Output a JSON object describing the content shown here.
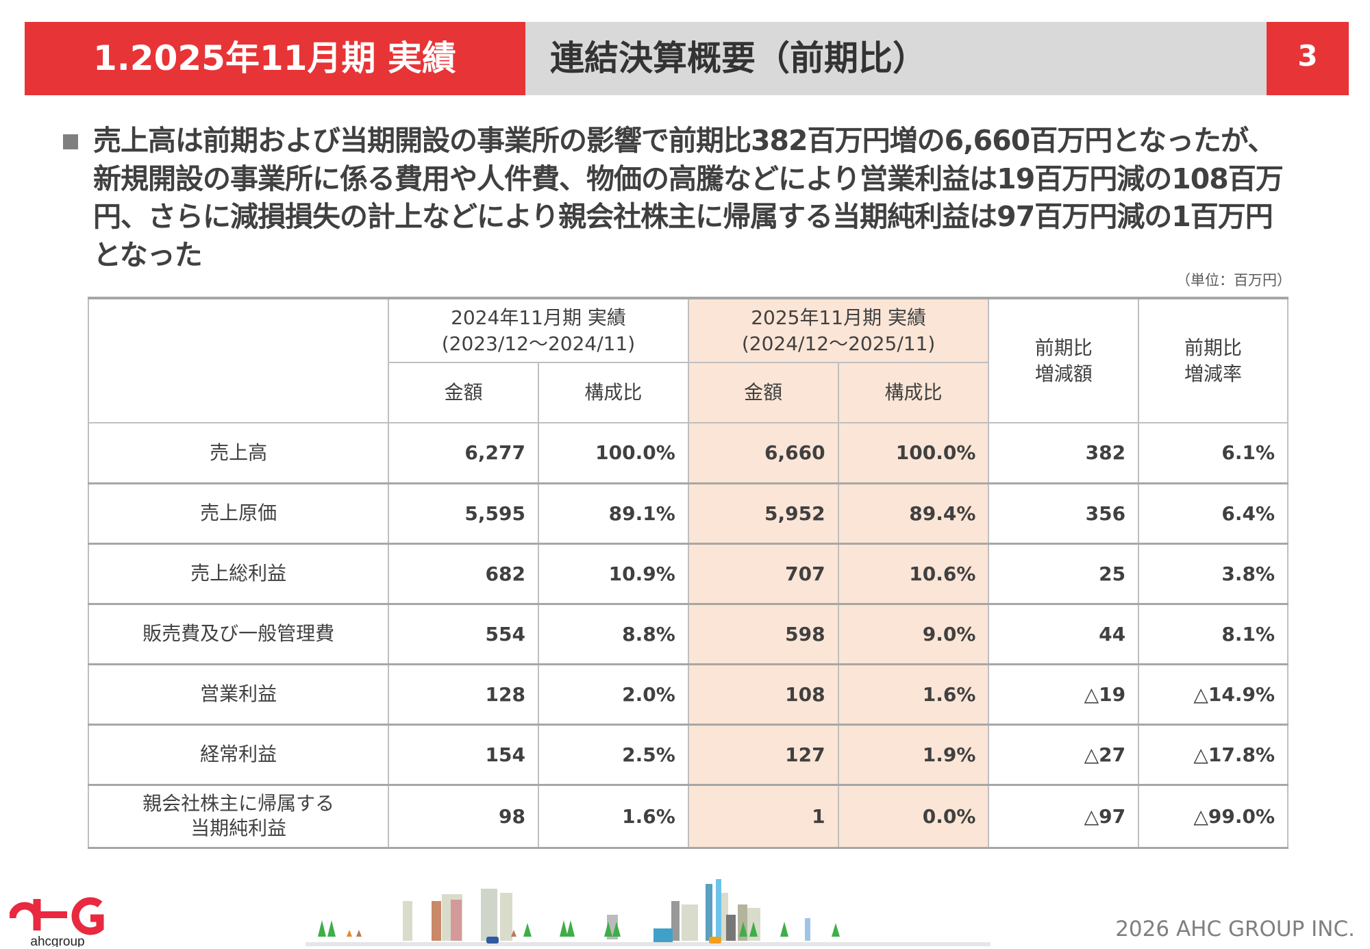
{
  "header": {
    "section": "1.2025年11月期 実績",
    "title": "連結決算概要（前期比）",
    "page_number": "3"
  },
  "lead_text": "売上高は前期および当期開設の事業所の影響で前期比382百万円増の6,660百万円となったが、新規開設の事業所に係る費用や人件費、物価の高騰などにより営業利益は19百万円減の108百万円、さらに減損損失の計上などにより親会社株主に帰属する当期純利益は97百万円減の1百万円となった",
  "unit_label": "（単位：百万円）",
  "table": {
    "period_prev": {
      "line1": "2024年11月期 実績",
      "line2": "(2023/12～2024/11)"
    },
    "period_curr": {
      "line1": "2025年11月期 実績",
      "line2": "(2024/12～2025/11)"
    },
    "col_amount": "金額",
    "col_ratio": "構成比",
    "col_diff": {
      "line1": "前期比",
      "line2": "増減額"
    },
    "col_rate": {
      "line1": "前期比",
      "line2": "増減率"
    },
    "rows": [
      {
        "label": "売上高",
        "label2": "",
        "prev_amount": "6,277",
        "prev_ratio": "100.0%",
        "curr_amount": "6,660",
        "curr_ratio": "100.0%",
        "diff": "382",
        "rate": "6.1%"
      },
      {
        "label": "売上原価",
        "label2": "",
        "prev_amount": "5,595",
        "prev_ratio": "89.1%",
        "curr_amount": "5,952",
        "curr_ratio": "89.4%",
        "diff": "356",
        "rate": "6.4%"
      },
      {
        "label": "売上総利益",
        "label2": "",
        "prev_amount": "682",
        "prev_ratio": "10.9%",
        "curr_amount": "707",
        "curr_ratio": "10.6%",
        "diff": "25",
        "rate": "3.8%"
      },
      {
        "label": "販売費及び一般管理費",
        "label2": "",
        "prev_amount": "554",
        "prev_ratio": "8.8%",
        "curr_amount": "598",
        "curr_ratio": "9.0%",
        "diff": "44",
        "rate": "8.1%"
      },
      {
        "label": "営業利益",
        "label2": "",
        "prev_amount": "128",
        "prev_ratio": "2.0%",
        "curr_amount": "108",
        "curr_ratio": "1.6%",
        "diff": "△19",
        "rate": "△14.9%"
      },
      {
        "label": "経常利益",
        "label2": "",
        "prev_amount": "154",
        "prev_ratio": "2.5%",
        "curr_amount": "127",
        "curr_ratio": "1.9%",
        "diff": "△27",
        "rate": "△17.8%"
      },
      {
        "label": "親会社株主に帰属する",
        "label2": "当期純利益",
        "prev_amount": "98",
        "prev_ratio": "1.6%",
        "curr_amount": "1",
        "curr_ratio": "0.0%",
        "diff": "△97",
        "rate": "△99.0%"
      }
    ]
  },
  "footer": {
    "logo_text": "ahcgroup",
    "copyright": "2026 AHC GROUP INC."
  },
  "colors": {
    "accent": "#e73436",
    "header_gray": "#d9d9d9",
    "highlight": "#fbe5d6"
  }
}
